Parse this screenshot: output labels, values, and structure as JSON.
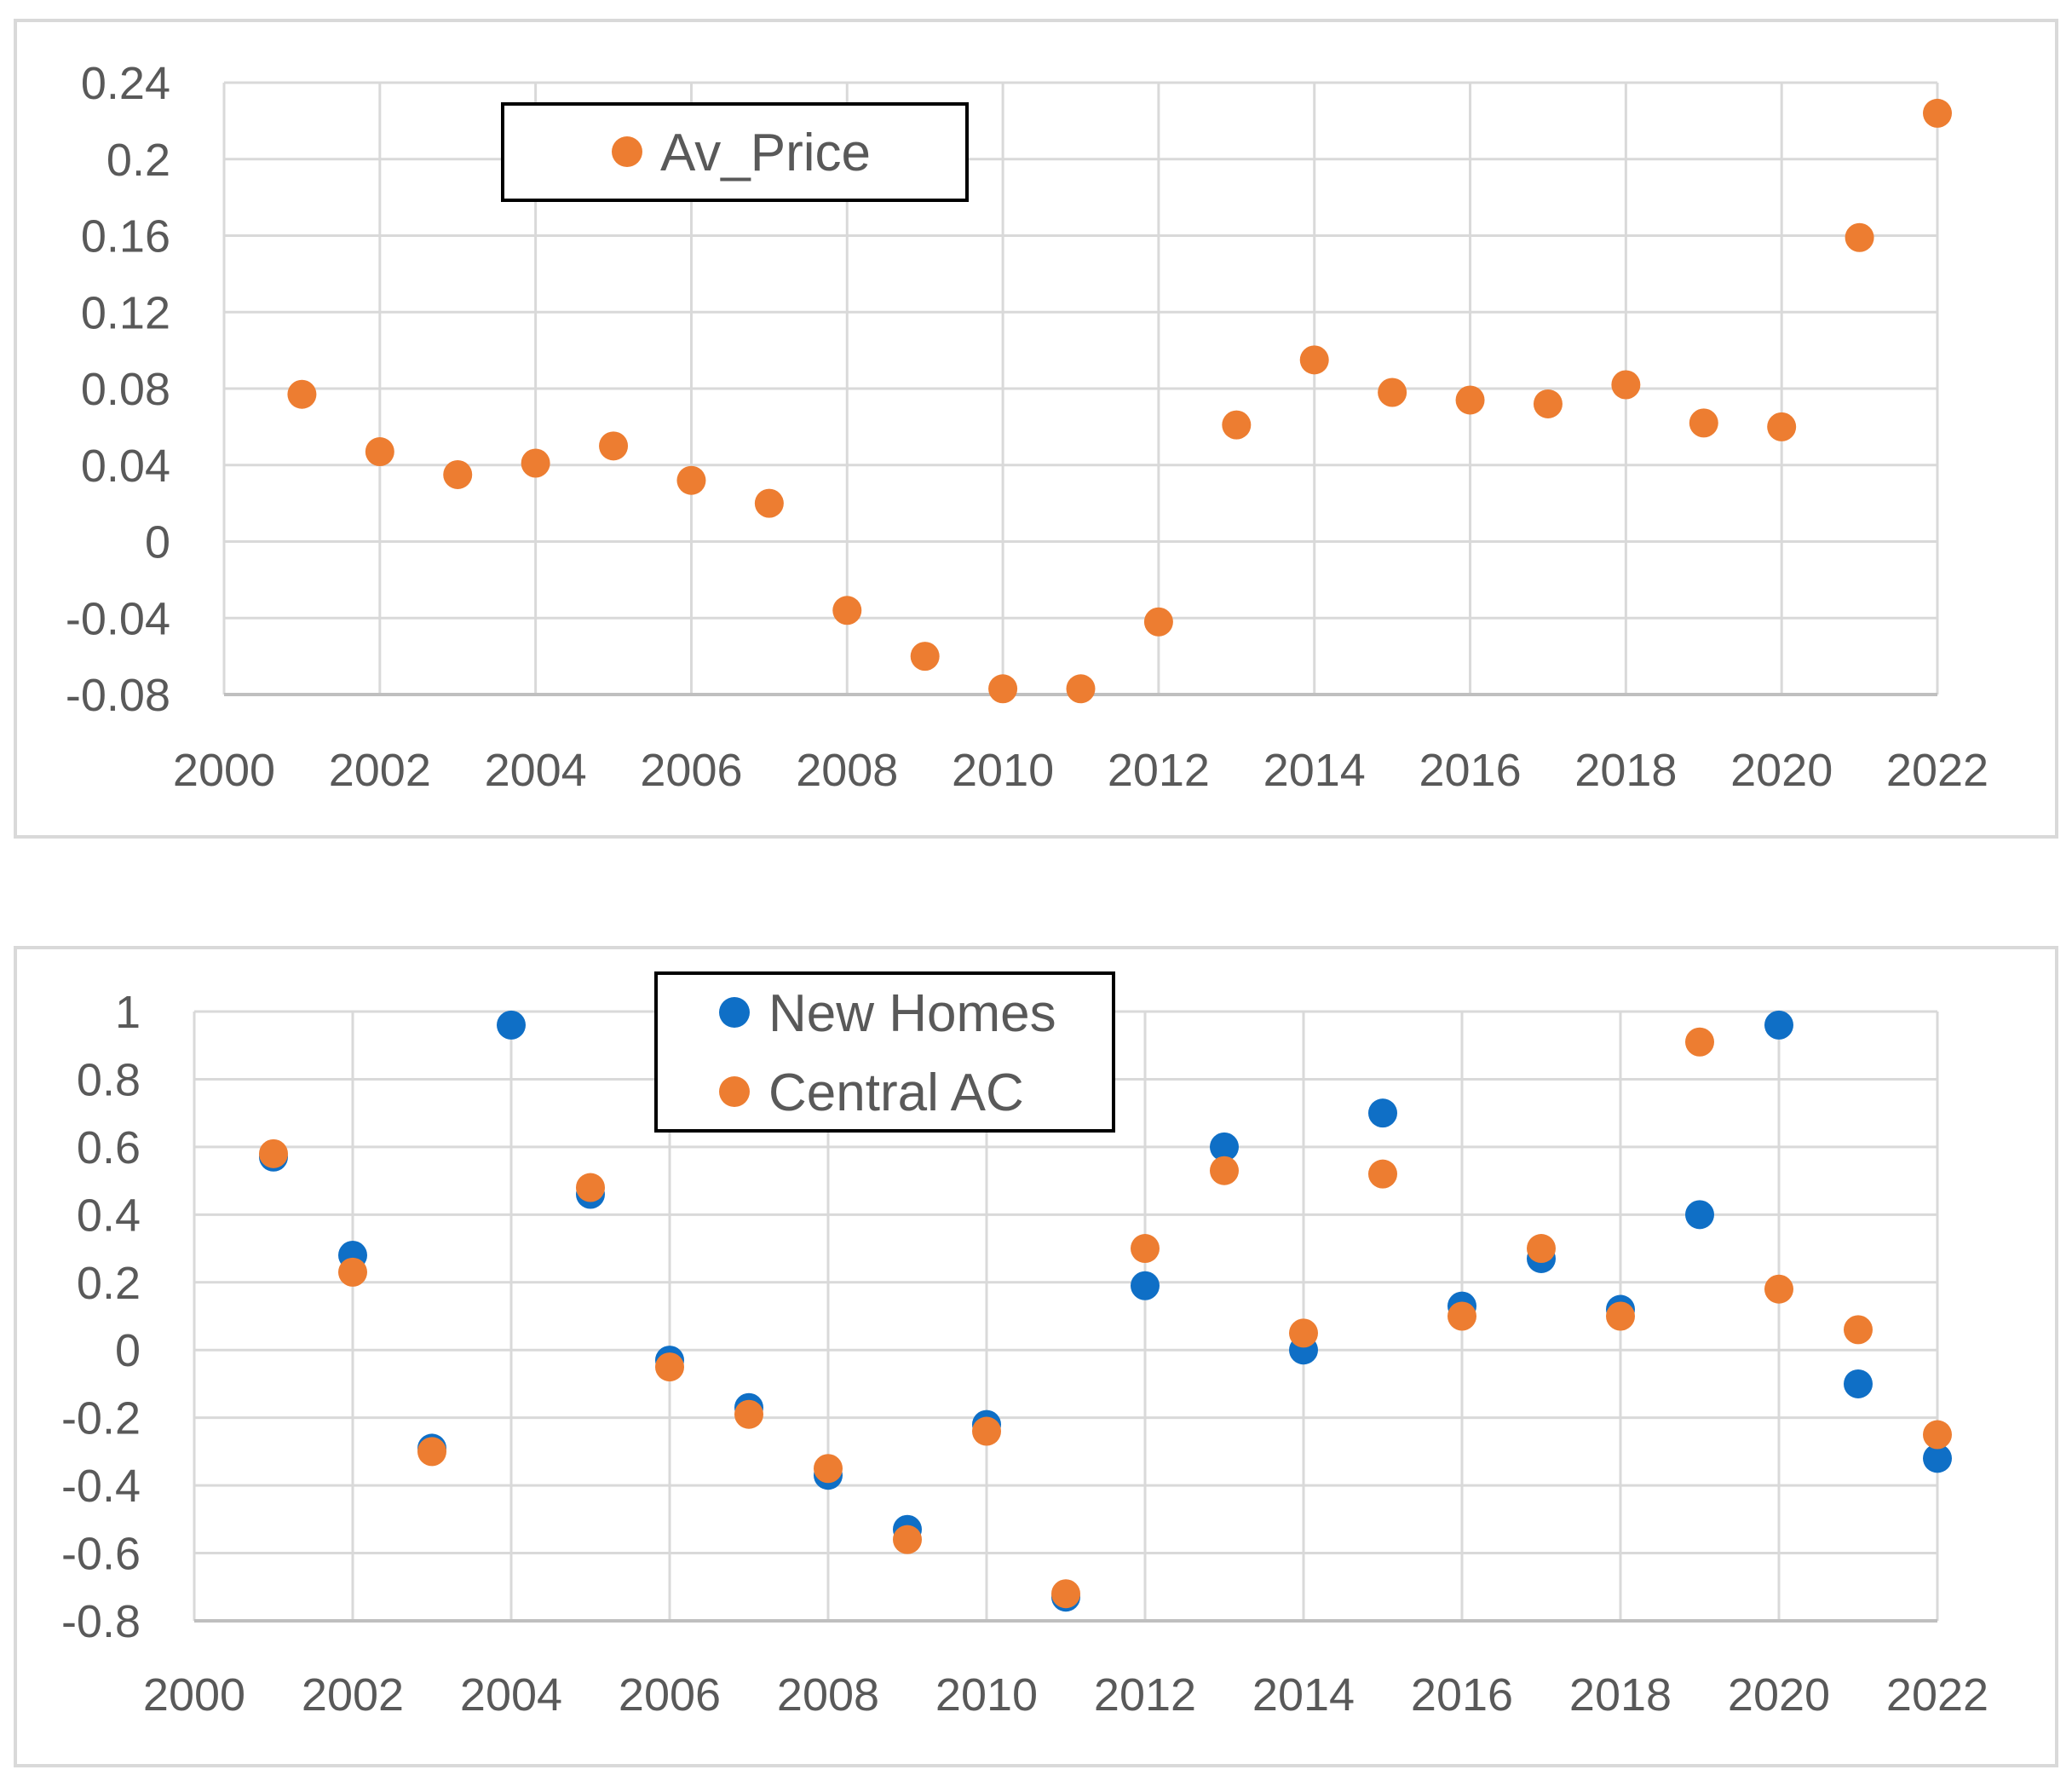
{
  "colors": {
    "orange": "#ED7D31",
    "blue": "#0F6FC6",
    "grid": "#d9d9d9",
    "axis": "#bfbfbf",
    "text": "#595959"
  },
  "chart_data": [
    {
      "type": "scatter",
      "title": "",
      "xlabel": "",
      "ylabel": "",
      "xlim": [
        2000,
        2022
      ],
      "ylim": [
        -0.08,
        0.24
      ],
      "x_ticks": [
        "2000",
        "2002",
        "2004",
        "2006",
        "2008",
        "2010",
        "2012",
        "2014",
        "2016",
        "2018",
        "2020",
        "2022"
      ],
      "y_ticks": [
        "0.24",
        "0.2",
        "0.16",
        "0.12",
        "0.08",
        "0.04",
        "0",
        "-0.04",
        "-0.08"
      ],
      "legend_position": "top-center",
      "series": [
        {
          "name": "Av_Price",
          "color": "#ED7D31",
          "x": [
            2001,
            2002,
            2003,
            2004,
            2005,
            2006,
            2007,
            2008,
            2009,
            2010,
            2011,
            2012,
            2013,
            2014,
            2015,
            2016,
            2017,
            2018,
            2019,
            2020,
            2021,
            2022
          ],
          "y": [
            0.077,
            0.047,
            0.035,
            0.041,
            0.05,
            0.032,
            0.02,
            -0.036,
            -0.06,
            -0.077,
            -0.077,
            -0.042,
            0.061,
            0.095,
            0.078,
            0.074,
            0.072,
            0.082,
            0.062,
            0.06,
            0.159,
            0.224
          ]
        }
      ]
    },
    {
      "type": "scatter",
      "title": "",
      "xlabel": "",
      "ylabel": "",
      "xlim": [
        2000,
        2022
      ],
      "ylim": [
        -0.8,
        1
      ],
      "x_ticks": [
        "2000",
        "2002",
        "2004",
        "2006",
        "2008",
        "2010",
        "2012",
        "2014",
        "2016",
        "2018",
        "2020",
        "2022"
      ],
      "y_ticks": [
        "1",
        "0.8",
        "0.6",
        "0.4",
        "0.2",
        "0",
        "-0.2",
        "-0.4",
        "-0.6",
        "-0.8"
      ],
      "legend_position": "top-center",
      "series": [
        {
          "name": "New Homes",
          "color": "#0F6FC6",
          "x": [
            2001,
            2002,
            2003,
            2004,
            2005,
            2006,
            2007,
            2008,
            2009,
            2010,
            2011,
            2012,
            2013,
            2014,
            2015,
            2016,
            2017,
            2018,
            2019,
            2020,
            2021,
            2022
          ],
          "y": [
            0.57,
            0.28,
            -0.29,
            0.96,
            0.46,
            -0.03,
            -0.17,
            -0.37,
            -0.53,
            -0.22,
            -0.73,
            0.19,
            0.6,
            0.0,
            0.7,
            0.13,
            0.27,
            0.12,
            0.4,
            0.96,
            -0.1,
            -0.32
          ]
        },
        {
          "name": "Central AC",
          "color": "#ED7D31",
          "x": [
            2001,
            2002,
            2003,
            2004,
            2005,
            2006,
            2007,
            2008,
            2009,
            2010,
            2011,
            2012,
            2013,
            2014,
            2015,
            2016,
            2017,
            2018,
            2019,
            2020,
            2021,
            2022
          ],
          "y": [
            0.58,
            0.23,
            -0.3,
            null,
            0.48,
            -0.05,
            -0.19,
            -0.35,
            -0.56,
            -0.24,
            -0.72,
            0.3,
            0.53,
            0.05,
            0.52,
            0.1,
            0.3,
            0.1,
            0.91,
            0.18,
            0.06,
            -0.25
          ]
        }
      ]
    }
  ]
}
